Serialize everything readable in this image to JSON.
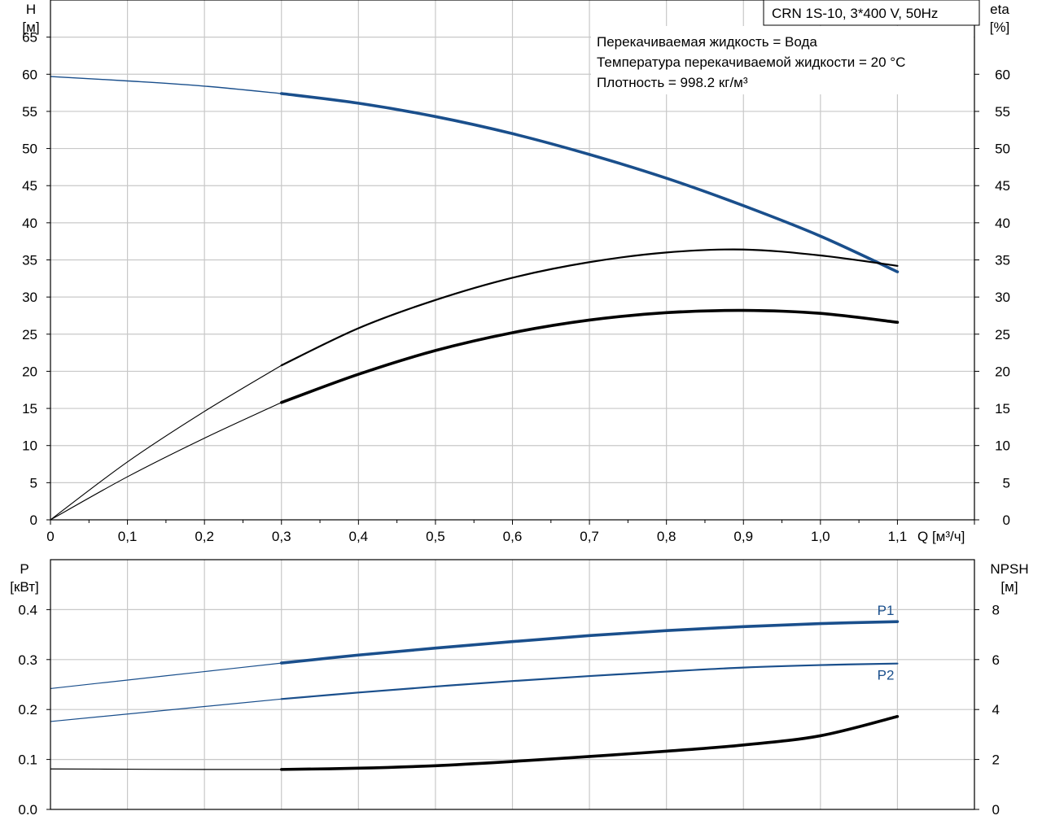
{
  "chart_data": [
    {
      "type": "line",
      "title": "CRN 1S-10, 3*400 V, 50Hz",
      "info_lines": [
        "Перекачиваемая жидкость = Вода",
        "Температура перекачиваемой жидкости = 20 °C",
        "Плотность = 998.2 кг/м³"
      ],
      "xlabel": "Q [м³/ч]",
      "x_ticks": [
        "0",
        "0,1",
        "0,2",
        "0,3",
        "0,4",
        "0,5",
        "0,6",
        "0,7",
        "0,8",
        "0,9",
        "1,0",
        "1,1"
      ],
      "xlim": [
        0,
        1.2
      ],
      "left_axis": {
        "label_line1": "H",
        "label_line2": "[м]",
        "ylim": [
          0,
          70
        ],
        "ticks": [
          0,
          5,
          10,
          15,
          20,
          25,
          30,
          35,
          40,
          45,
          50,
          55,
          60,
          65
        ]
      },
      "right_axis": {
        "label_line1": "eta",
        "label_line2": "[%]",
        "ylim": [
          0,
          70
        ],
        "ticks": [
          0,
          5,
          10,
          15,
          20,
          25,
          30,
          35,
          40,
          45,
          50,
          55,
          60
        ]
      },
      "operating_range": [
        0.3,
        1.1
      ],
      "series": [
        {
          "key": "H",
          "axis": "left",
          "color": "#1a4f8c",
          "label": "",
          "x": [
            0,
            0.1,
            0.2,
            0.3,
            0.4,
            0.5,
            0.6,
            0.7,
            0.8,
            0.9,
            1.0,
            1.1
          ],
          "y": [
            59.7,
            59.1,
            58.4,
            57.4,
            56.1,
            54.3,
            52.0,
            49.2,
            46.0,
            42.3,
            38.2,
            33.4
          ]
        },
        {
          "key": "eta_upper",
          "axis": "right",
          "color": "#000000",
          "label": "",
          "x": [
            0,
            0.1,
            0.2,
            0.3,
            0.4,
            0.5,
            0.6,
            0.7,
            0.8,
            0.9,
            1.0,
            1.1
          ],
          "y": [
            0,
            7.8,
            14.6,
            20.8,
            25.8,
            29.6,
            32.6,
            34.7,
            36.0,
            36.4,
            35.6,
            34.2
          ]
        },
        {
          "key": "eta_lower",
          "axis": "right",
          "color": "#000000",
          "label": "",
          "x": [
            0,
            0.1,
            0.2,
            0.3,
            0.4,
            0.5,
            0.6,
            0.7,
            0.8,
            0.9,
            1.0,
            1.1
          ],
          "y": [
            0,
            5.8,
            11.0,
            15.8,
            19.6,
            22.8,
            25.2,
            26.9,
            27.9,
            28.2,
            27.8,
            26.6
          ]
        }
      ]
    },
    {
      "type": "line",
      "xlim": [
        0,
        1.2
      ],
      "left_axis": {
        "label_line1": "P",
        "label_line2": "[кВт]",
        "ylim": [
          0,
          0.5
        ],
        "ticks": [
          "0.0",
          "0.1",
          "0.2",
          "0.3",
          "0.4"
        ]
      },
      "right_axis": {
        "label_line1": "NPSH",
        "label_line2": "[м]",
        "ylim": [
          0,
          10
        ],
        "ticks": [
          "0",
          "2",
          "4",
          "6",
          "8"
        ]
      },
      "operating_range": [
        0.3,
        1.1
      ],
      "series": [
        {
          "key": "P1",
          "axis": "left",
          "color": "#1a4f8c",
          "label": "P1",
          "x": [
            0,
            0.1,
            0.2,
            0.3,
            0.4,
            0.5,
            0.6,
            0.7,
            0.8,
            0.9,
            1.0,
            1.1
          ],
          "y": [
            0.242,
            0.259,
            0.276,
            0.293,
            0.309,
            0.323,
            0.336,
            0.348,
            0.358,
            0.366,
            0.372,
            0.376
          ]
        },
        {
          "key": "P2",
          "axis": "left",
          "color": "#1a4f8c",
          "label": "P2",
          "x": [
            0,
            0.1,
            0.2,
            0.3,
            0.4,
            0.5,
            0.6,
            0.7,
            0.8,
            0.9,
            1.0,
            1.1
          ],
          "y": [
            0.176,
            0.191,
            0.206,
            0.221,
            0.234,
            0.246,
            0.257,
            0.267,
            0.276,
            0.284,
            0.289,
            0.292
          ]
        },
        {
          "key": "NPSH",
          "axis": "right",
          "color": "#000000",
          "label": "",
          "x": [
            0,
            0.1,
            0.2,
            0.3,
            0.4,
            0.5,
            0.6,
            0.7,
            0.8,
            0.9,
            1.0,
            1.1
          ],
          "y": [
            1.62,
            1.61,
            1.6,
            1.6,
            1.65,
            1.75,
            1.92,
            2.12,
            2.33,
            2.58,
            2.95,
            3.72
          ]
        }
      ]
    }
  ]
}
